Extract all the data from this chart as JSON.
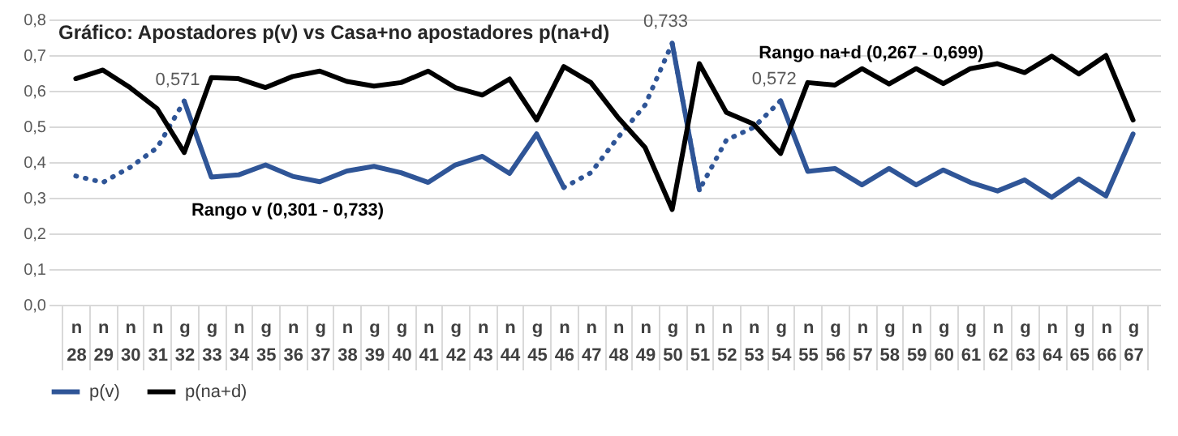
{
  "chart_data": {
    "type": "line",
    "title": "Gráfico: Apostadores p(v) vs Casa+no apostadores p(na+d)",
    "categories": [
      "n\n28",
      "n\n29",
      "n\n30",
      "n\n31",
      "g\n32",
      "g\n33",
      "n\n34",
      "g\n35",
      "n\n36",
      "g\n37",
      "n\n38",
      "g\n39",
      "g\n40",
      "n\n41",
      "g\n42",
      "n\n43",
      "n\n44",
      "g\n45",
      "n\n46",
      "n\n47",
      "n\n48",
      "n\n49",
      "g\n50",
      "n\n51",
      "n\n52",
      "n\n53",
      "g\n54",
      "n\n55",
      "g\n56",
      "n\n57",
      "g\n58",
      "n\n59",
      "g\n60",
      "g\n61",
      "n\n62",
      "g\n63",
      "n\n64",
      "g\n65",
      "n\n66",
      "g\n67"
    ],
    "series": [
      {
        "name": "p(v)",
        "color": "#2f5597",
        "line_style": "solid",
        "values": [
          null,
          null,
          null,
          null,
          0.571,
          0.358,
          0.364,
          0.392,
          0.36,
          0.345,
          0.375,
          0.388,
          0.37,
          0.343,
          0.392,
          0.416,
          0.368,
          0.479,
          0.329,
          null,
          null,
          null,
          0.733,
          0.322,
          null,
          null,
          0.572,
          0.374,
          0.382,
          0.336,
          0.382,
          0.336,
          0.378,
          0.343,
          0.319,
          0.35,
          0.301,
          0.353,
          0.305,
          0.479
        ]
      },
      {
        "color": "#2f5597",
        "line_style": "dotted",
        "values": [
          0.361,
          0.343,
          0.385,
          0.44,
          0.571,
          null,
          null,
          null,
          null,
          null,
          null,
          null,
          null,
          null,
          null,
          null,
          null,
          null,
          0.329,
          0.37,
          0.469,
          0.56,
          0.733,
          0.322,
          0.462,
          0.497,
          0.572,
          null,
          null,
          null,
          null,
          null,
          null,
          null,
          null,
          null,
          null,
          null,
          null,
          null
        ]
      },
      {
        "name": "p(na+d)",
        "color": "#000000",
        "line_style": "solid",
        "values": [
          0.634,
          0.658,
          0.609,
          0.55,
          0.427,
          0.637,
          0.634,
          0.609,
          0.64,
          0.655,
          0.626,
          0.613,
          0.623,
          0.655,
          0.609,
          0.588,
          0.633,
          0.518,
          0.668,
          0.623,
          0.525,
          0.441,
          0.267,
          0.676,
          0.539,
          0.507,
          0.424,
          0.623,
          0.616,
          0.662,
          0.619,
          0.662,
          0.62,
          0.662,
          0.676,
          0.651,
          0.697,
          0.647,
          0.699,
          0.518
        ]
      }
    ],
    "ylim": [
      0,
      0.8
    ],
    "yticks": [
      {
        "value": 0,
        "label": "0,0"
      },
      {
        "value": 0.1,
        "label": "0,1"
      },
      {
        "value": 0.2,
        "label": "0,2"
      },
      {
        "value": 0.3,
        "label": "0,3"
      },
      {
        "value": 0.4,
        "label": "0,4"
      },
      {
        "value": 0.5,
        "label": "0,5"
      },
      {
        "value": 0.6,
        "label": "0,6"
      },
      {
        "value": 0.7,
        "label": "0,7"
      },
      {
        "value": 0.8,
        "label": "0,8"
      }
    ],
    "grid": "y",
    "legend": "bottom",
    "annotations": [
      {
        "text": "0,571",
        "x": "g\n32",
        "y": 0.571
      },
      {
        "text": "0,733",
        "x": "g\n50",
        "y": 0.733
      },
      {
        "text": "0,572",
        "x": "g\n54",
        "y": 0.572
      },
      "Rango v (0,301 - 0,733)",
      "Rango na+d (0,267 - 0,699)"
    ]
  }
}
